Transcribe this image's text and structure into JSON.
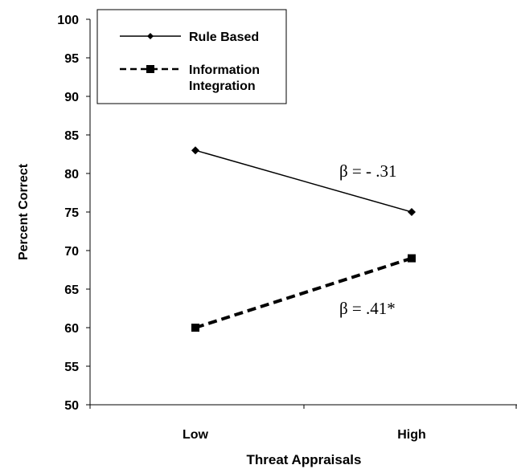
{
  "chart_data": {
    "type": "line",
    "title": "",
    "xlabel": "Threat Appraisals",
    "ylabel": "Percent Correct",
    "categories": [
      "Low",
      "High"
    ],
    "ylim": [
      50,
      100
    ],
    "yticks": [
      50,
      55,
      60,
      65,
      70,
      75,
      80,
      85,
      90,
      95,
      100
    ],
    "grid": false,
    "legend_position": "top-left",
    "series": [
      {
        "name": "Rule Based",
        "values": [
          83,
          75
        ],
        "marker": "diamond",
        "line_style": "solid",
        "color": "#000000"
      },
      {
        "name": "Information Integration",
        "values": [
          60,
          69
        ],
        "marker": "square",
        "line_style": "dashed",
        "color": "#000000"
      }
    ],
    "annotations": [
      {
        "text": "β = - .31",
        "series": "Rule Based"
      },
      {
        "text": "β = .41*",
        "series": "Information Integration"
      }
    ]
  }
}
